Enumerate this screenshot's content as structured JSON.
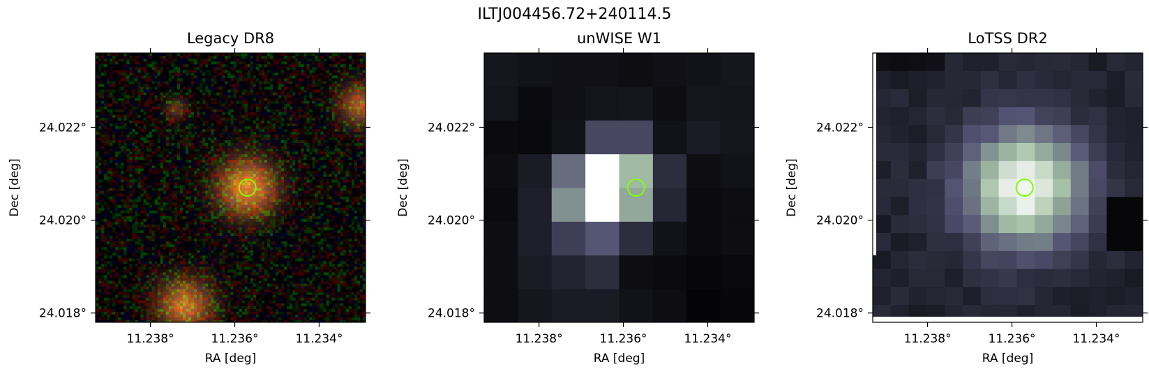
{
  "figure": {
    "title": "ILTJ004456.72+240114.5"
  },
  "colors": {
    "marker": "#80ff00",
    "frame": "#000000"
  },
  "chart_data": [
    {
      "type": "heatmap",
      "title": "Legacy DR8",
      "xlabel": "RA [deg]",
      "ylabel": "Dec [deg]",
      "x_ticks": [
        "11.238°",
        "11.236°",
        "11.234°"
      ],
      "y_ticks": [
        "24.022°",
        "24.020°",
        "24.018°"
      ],
      "x_tick_values": [
        11.238,
        11.236,
        11.234
      ],
      "y_tick_values": [
        24.022,
        24.02,
        24.018
      ],
      "xlim": [
        11.2393,
        11.2329
      ],
      "ylim": [
        24.0178,
        24.0236
      ],
      "marker": {
        "ra": 11.2357,
        "dec": 24.0207,
        "shape": "circle"
      },
      "image": "rgb optical noise with extended orange sources",
      "colormap": "rgb"
    },
    {
      "type": "heatmap",
      "title": "unWISE W1",
      "xlabel": "RA [deg]",
      "ylabel": "Dec [deg]",
      "x_ticks": [
        "11.238°",
        "11.236°",
        "11.234°"
      ],
      "y_ticks": [
        "24.022°",
        "24.020°",
        "24.018°"
      ],
      "x_tick_values": [
        11.238,
        11.236,
        11.234
      ],
      "y_tick_values": [
        24.022,
        24.02,
        24.018
      ],
      "xlim": [
        11.2393,
        11.2329
      ],
      "ylim": [
        24.0178,
        24.0236
      ],
      "marker": {
        "ra": 11.2357,
        "dec": 24.0207,
        "shape": "circle"
      },
      "colormap": "bone"
    },
    {
      "type": "heatmap",
      "title": "LoTSS DR2",
      "xlabel": "RA [deg]",
      "ylabel": "Dec [deg]",
      "x_ticks": [
        "11.238°",
        "11.236°",
        "11.234°"
      ],
      "y_ticks": [
        "24.022°",
        "24.020°",
        "24.018°"
      ],
      "x_tick_values": [
        11.238,
        11.236,
        11.234
      ],
      "y_tick_values": [
        24.022,
        24.02,
        24.018
      ],
      "xlim": [
        11.2393,
        11.2329
      ],
      "ylim": [
        24.0178,
        24.0236
      ],
      "marker": {
        "ra": 11.2357,
        "dec": 24.0207,
        "shape": "circle"
      },
      "colormap": "bone"
    }
  ]
}
